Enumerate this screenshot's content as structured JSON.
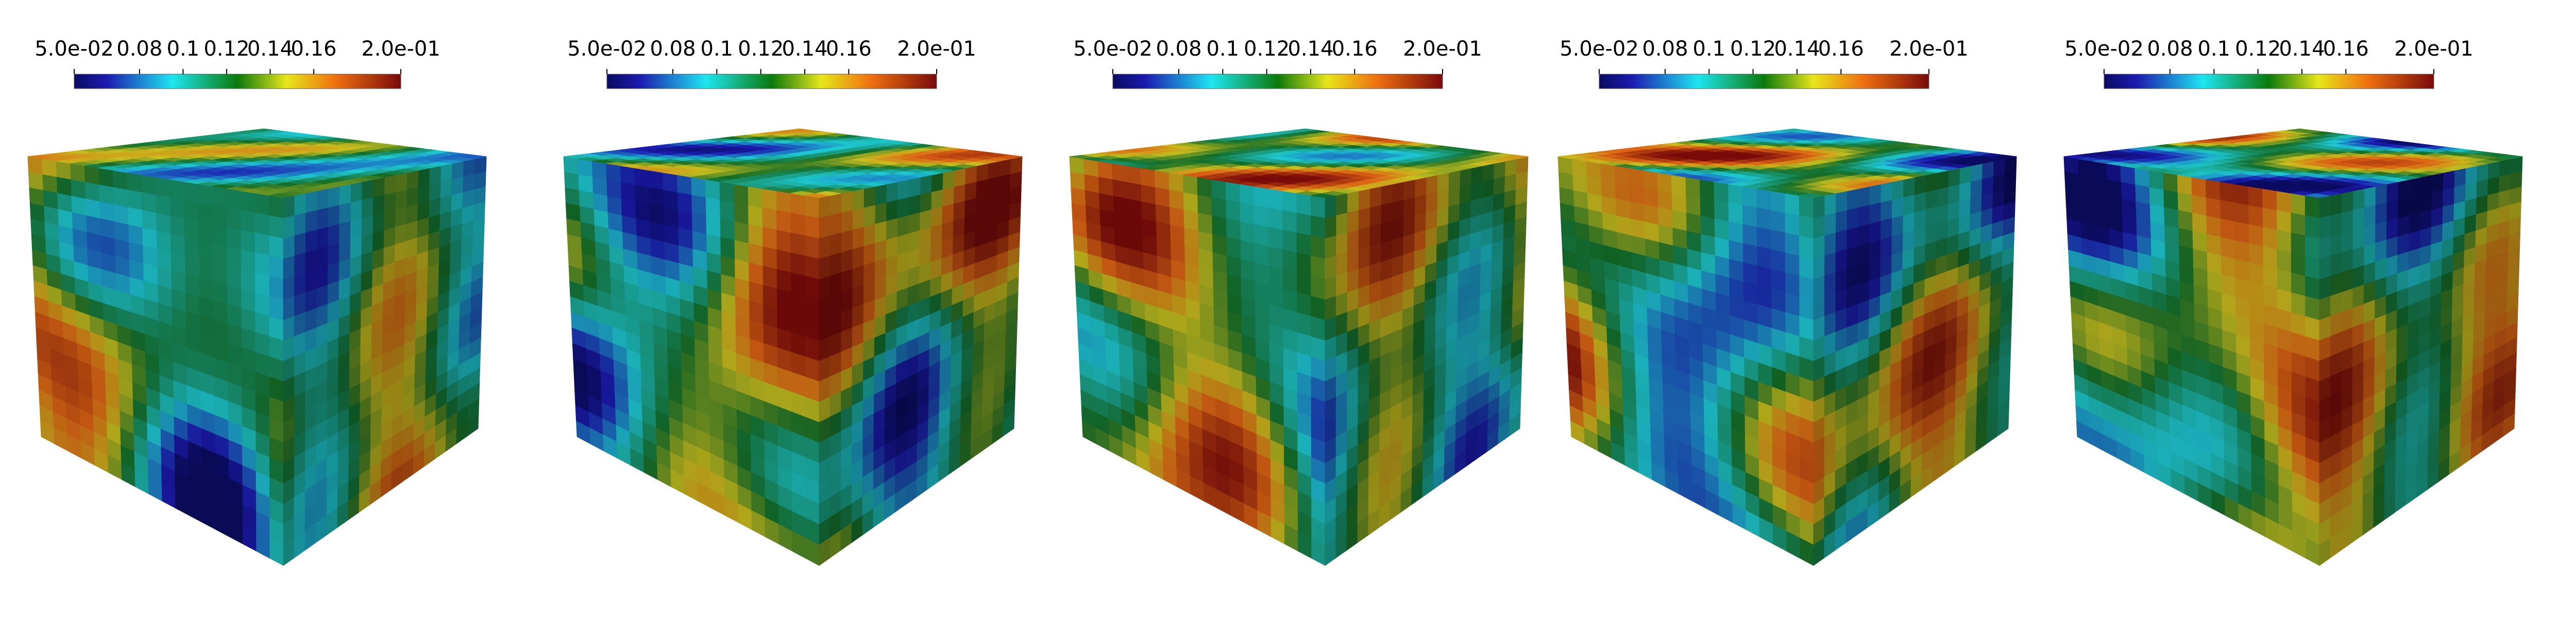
{
  "panels": [
    {
      "colorbar": {
        "lim": [
          0.05,
          0.2
        ],
        "ticks": [
          {
            "value": 0.05,
            "label": "5.0e-02"
          },
          0.08,
          0.1,
          0.12,
          0.14,
          0.16,
          {
            "value": 0.2,
            "label": "2.0e-01"
          }
        ]
      }
    },
    {
      "colorbar": {
        "lim": [
          0.05,
          0.2
        ],
        "ticks": [
          {
            "value": 0.05,
            "label": "5.0e-02"
          },
          0.08,
          0.1,
          0.12,
          0.14,
          0.16,
          {
            "value": 0.2,
            "label": "2.0e-01"
          }
        ]
      }
    },
    {
      "colorbar": {
        "lim": [
          0.05,
          0.2
        ],
        "ticks": [
          {
            "value": 0.05,
            "label": "5.0e-02"
          },
          0.08,
          0.1,
          0.12,
          0.14,
          0.16,
          {
            "value": 0.2,
            "label": "2.0e-01"
          }
        ]
      }
    },
    {
      "colorbar": {
        "lim": [
          0.05,
          0.2
        ],
        "ticks": [
          {
            "value": 0.05,
            "label": "5.0e-02"
          },
          0.08,
          0.1,
          0.12,
          0.14,
          0.16,
          {
            "value": 0.2,
            "label": "2.0e-01"
          }
        ]
      }
    },
    {
      "colorbar": {
        "lim": [
          0.05,
          0.2
        ],
        "ticks": [
          {
            "value": 0.05,
            "label": "5.0e-02"
          },
          0.08,
          0.1,
          0.12,
          0.14,
          0.16,
          {
            "value": 0.2,
            "label": "2.0e-01"
          }
        ]
      }
    }
  ]
}
